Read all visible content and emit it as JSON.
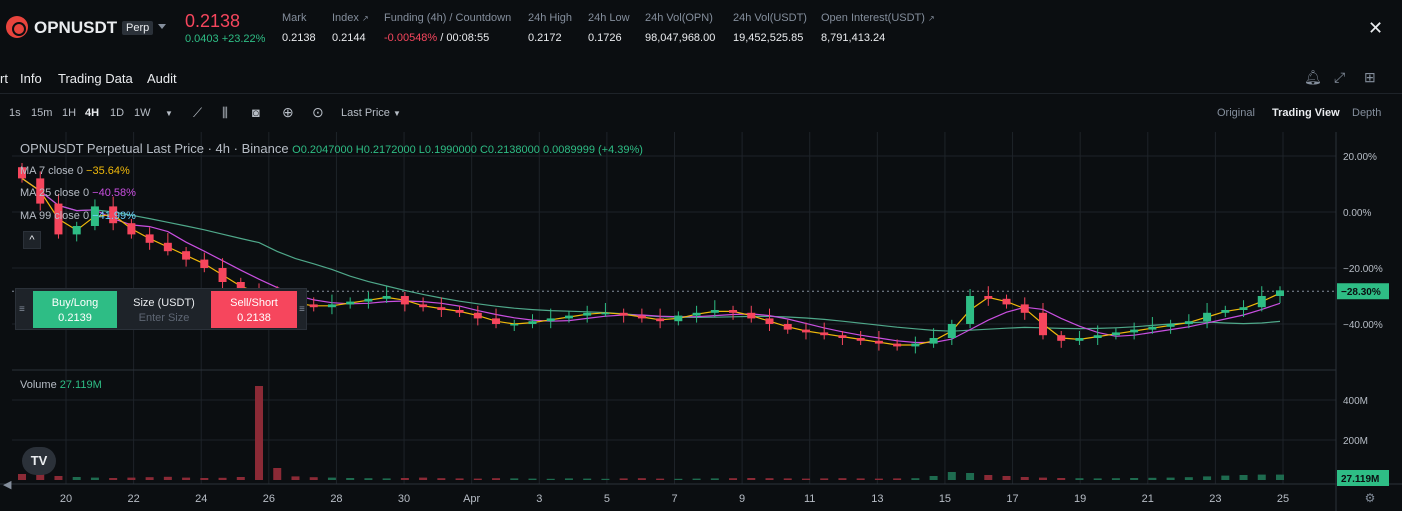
{
  "header": {
    "symbol": "OPNUSDT",
    "badge": "Perp",
    "last_price": "0.2138",
    "change": "0.0403 +23.22%",
    "stats": [
      {
        "label": "Mark",
        "value": "0.2138"
      },
      {
        "label": "Index",
        "value": "0.2144"
      },
      {
        "label": "Funding (4h) / Countdown",
        "value_neg": "-0.00548%",
        "value": " / 00:08:55"
      },
      {
        "label": "24h High",
        "value": "0.2172"
      },
      {
        "label": "24h Low",
        "value": "0.1726"
      },
      {
        "label": "24h Vol(OPN)",
        "value": "98,047,968.00"
      },
      {
        "label": "24h Vol(USDT)",
        "value": "19,452,525.85"
      },
      {
        "label": "Open Interest(USDT)",
        "value": "8,791,413.24"
      }
    ]
  },
  "tabs": [
    "rt",
    "Info",
    "Trading Data",
    "Audit"
  ],
  "toolbar": {
    "intervals": [
      "1s",
      "15m",
      "1H",
      "4H",
      "1D",
      "1W"
    ],
    "active_interval": "4H",
    "price_type": "Last Price",
    "views": [
      "Original",
      "Trading View",
      "Depth"
    ],
    "active_view": "Trading View"
  },
  "legend": {
    "title": "OPNUSDT Perpetual Last Price · 4h · Binance",
    "ohlc": "O0.2047000 H0.2172000 L0.1990000 C0.2138000 0.0089999 (+4.39%)",
    "ma7_label": "MA 7 close 0",
    "ma7_value": "−35.64%",
    "ma25_label": "MA 25 close 0",
    "ma25_value": "−40.58%",
    "ma99_label": "MA 99 close 0",
    "ma99_value": "−41.99%",
    "volume_label": "Volume",
    "volume_value": "27.119M"
  },
  "quick_trade": {
    "buy_label": "Buy/Long",
    "buy_price": "0.2139",
    "size_label": "Size (USDT)",
    "size_placeholder": "Enter Size",
    "sell_label": "Sell/Short",
    "sell_price": "0.2138"
  },
  "price_axis": {
    "ticks": [
      "20.00%",
      "0.00%",
      "−20.00%",
      "−40.00%"
    ],
    "current_badge": "−28.30%"
  },
  "volume_axis": {
    "ticks": [
      "400M",
      "200M"
    ],
    "current_badge": "27.119M"
  },
  "time_axis": [
    "20",
    "22",
    "24",
    "26",
    "28",
    "30",
    "Apr",
    "3",
    "5",
    "7",
    "9",
    "11",
    "13",
    "15",
    "17",
    "19",
    "21",
    "23",
    "25"
  ],
  "colors": {
    "up": "#2ebd85",
    "down": "#f6465d",
    "ma7": "#f0b90b",
    "ma25": "#c94fe0",
    "ma99": "#4fa88a",
    "background": "#0b0e11",
    "grid": "#1e2329"
  },
  "chart_data": {
    "type": "candlestick",
    "interval": "4h",
    "y_unit": "percent change",
    "ylim": [
      -55,
      25
    ],
    "close_pct": [
      12,
      3,
      -8,
      -5,
      2,
      -4,
      -8,
      -11,
      -14,
      -17,
      -20,
      -25,
      -28,
      -30,
      -32,
      -33,
      -34,
      -33,
      -32,
      -31,
      -30,
      -33,
      -34,
      -35,
      -36,
      -38,
      -40,
      -40,
      -39,
      -38,
      -37,
      -36,
      -36,
      -37,
      -38,
      -39,
      -37,
      -36,
      -35,
      -36,
      -38,
      -40,
      -42,
      -43,
      -44,
      -45,
      -46,
      -47,
      -48,
      -47,
      -45,
      -40,
      -30,
      -31,
      -33,
      -36,
      -44,
      -46,
      -45,
      -44,
      -43,
      -42,
      -41,
      -40,
      -39,
      -36,
      -35,
      -34,
      -30,
      -28
    ],
    "volume_m": [
      30,
      28,
      20,
      15,
      12,
      10,
      12,
      14,
      16,
      12,
      10,
      11,
      15,
      470,
      60,
      18,
      14,
      12,
      10,
      9,
      8,
      10,
      12,
      9,
      8,
      7,
      9,
      8,
      7,
      6,
      8,
      7,
      6,
      8,
      9,
      7,
      6,
      7,
      8,
      9,
      10,
      9,
      8,
      7,
      8,
      9,
      8,
      7,
      8,
      9,
      20,
      40,
      35,
      25,
      20,
      15,
      12,
      10,
      9,
      8,
      9,
      10,
      11,
      12,
      14,
      18,
      22,
      25,
      27,
      27
    ]
  }
}
